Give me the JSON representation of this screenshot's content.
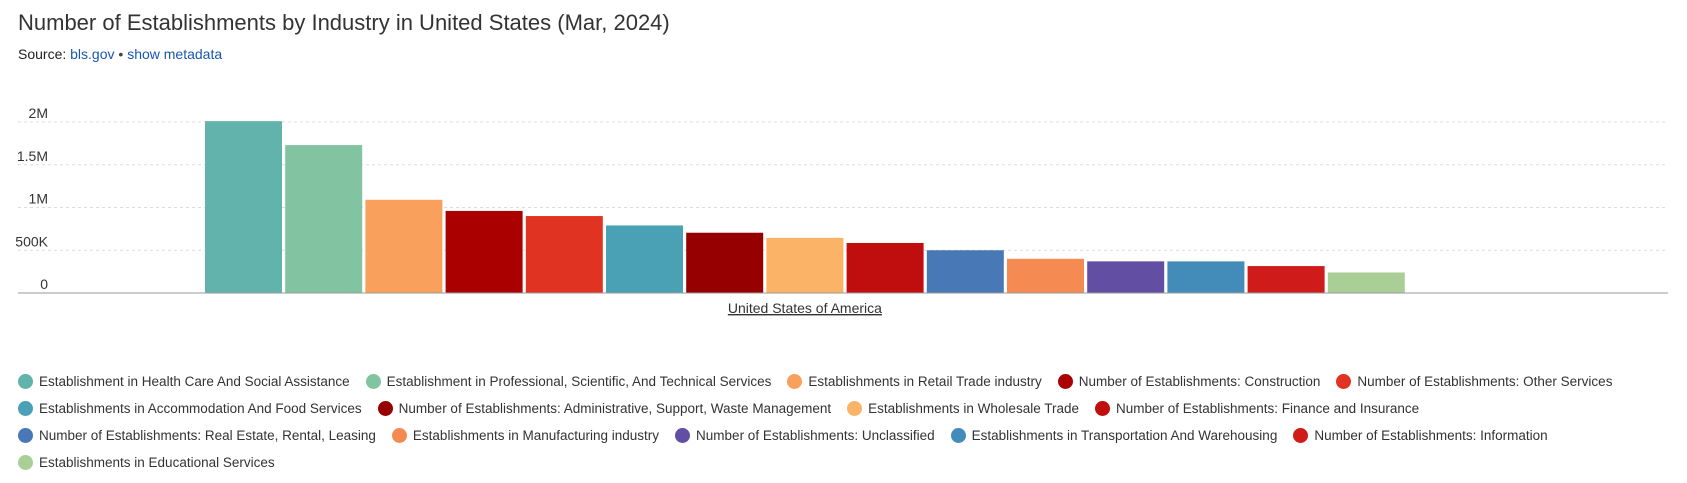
{
  "header": {
    "title": "Number of Establishments by Industry in United States (Mar, 2024)",
    "source_prefix": "Source:",
    "source_link": "bls.gov",
    "separator": "•",
    "metadata_link": "show metadata"
  },
  "chart_data": {
    "type": "bar",
    "categories": [
      "United States of America"
    ],
    "ylim": [
      0,
      2000000
    ],
    "yticks": [
      {
        "value": 0,
        "label": "0"
      },
      {
        "value": 500000,
        "label": "500K"
      },
      {
        "value": 1000000,
        "label": "1M"
      },
      {
        "value": 1500000,
        "label": "1.5M"
      },
      {
        "value": 2000000,
        "label": "2M"
      }
    ],
    "grid": true,
    "legend_position": "bottom",
    "series": [
      {
        "name": "Establishment in Health Care And Social Assistance",
        "values": [
          2010000
        ],
        "color": "#62b3ab"
      },
      {
        "name": "Establishment in Professional, Scientific, And Technical Services",
        "values": [
          1730000
        ],
        "color": "#82c4a2"
      },
      {
        "name": "Establishments in Retail Trade industry",
        "values": [
          1090000
        ],
        "color": "#f9a05c"
      },
      {
        "name": "Number of Establishments: Construction",
        "values": [
          960000
        ],
        "color": "#ab0000"
      },
      {
        "name": "Number of Establishments: Other Services",
        "values": [
          900000
        ],
        "color": "#e03321"
      },
      {
        "name": "Establishments in Accommodation And Food Services",
        "values": [
          790000
        ],
        "color": "#4aa0b5"
      },
      {
        "name": "Number of Establishments: Administrative, Support, Waste Management",
        "values": [
          705000
        ],
        "color": "#970000"
      },
      {
        "name": "Establishments in Wholesale Trade",
        "values": [
          645000
        ],
        "color": "#fbb368"
      },
      {
        "name": "Number of Establishments: Finance and Insurance",
        "values": [
          585000
        ],
        "color": "#c00d0d"
      },
      {
        "name": "Number of Establishments: Real Estate, Rental, Leasing",
        "values": [
          500000
        ],
        "color": "#4878b5"
      },
      {
        "name": "Establishments in Manufacturing industry",
        "values": [
          400000
        ],
        "color": "#f58a53"
      },
      {
        "name": "Number of Establishments: Unclassified",
        "values": [
          370000
        ],
        "color": "#624ea2"
      },
      {
        "name": "Establishments in Transportation And Warehousing",
        "values": [
          370000
        ],
        "color": "#438cba"
      },
      {
        "name": "Number of Establishments: Information",
        "values": [
          315000
        ],
        "color": "#d01b1b"
      },
      {
        "name": "Establishments in Educational Services",
        "values": [
          240000
        ],
        "color": "#a9cf96"
      }
    ]
  }
}
